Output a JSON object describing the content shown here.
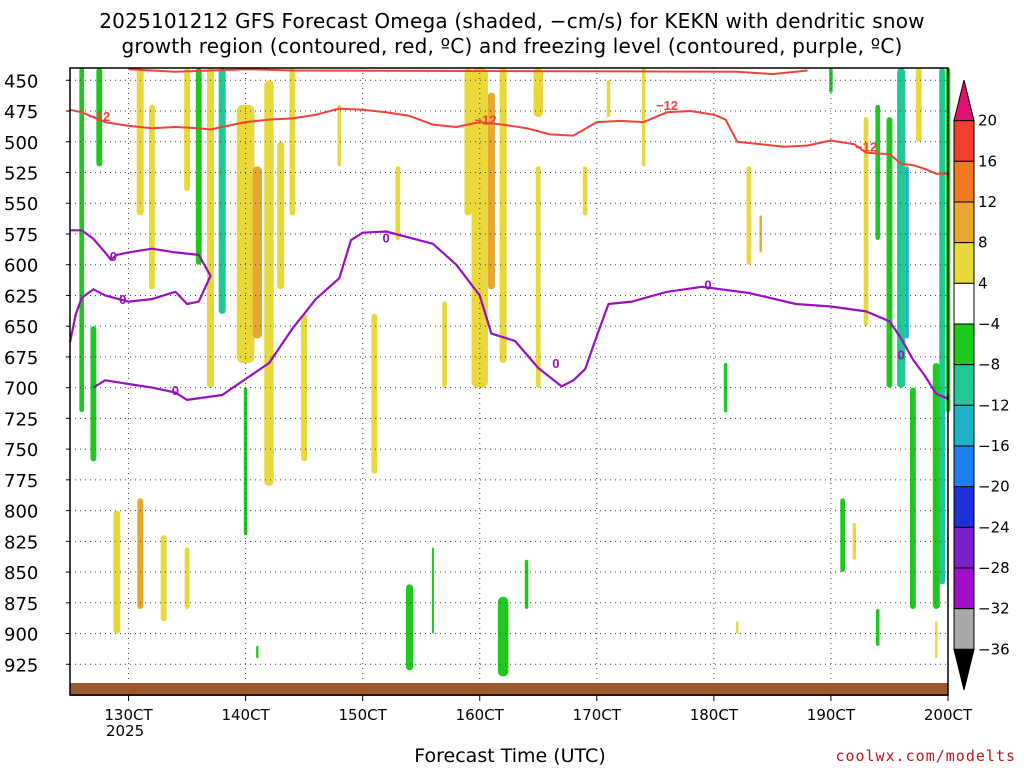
{
  "title_line1": "2025101212 GFS Forecast Omega (shaded, −cm/s) for KEKN with dendritic snow",
  "title_line2": "growth region (contoured, red, ºC) and freezing level (contoured, purple, ºC)",
  "credit": "coolwx.com/modelts",
  "chart_data": {
    "type": "heatmap",
    "title": "2025101212 GFS Forecast Omega (shaded, −cm/s) for KEKN with dendritic snow growth region (contoured, red, ºC) and freezing level (contoured, purple, ºC)",
    "xlabel": "Forecast Time (UTC)",
    "ylabel": "",
    "x_unit": "forecast day (October 2025, hour 00 = label)",
    "xlim": [
      12.5,
      20.0
    ],
    "ylim": [
      950,
      440
    ],
    "y_scale": "linear pressure (hPa), inverted",
    "grid": true,
    "x_ticks": [
      {
        "value": 13,
        "label": "130CT"
      },
      {
        "value": 14,
        "label": "140CT"
      },
      {
        "value": 15,
        "label": "150CT"
      },
      {
        "value": 16,
        "label": "160CT"
      },
      {
        "value": 17,
        "label": "170CT"
      },
      {
        "value": 18,
        "label": "180CT"
      },
      {
        "value": 19,
        "label": "190CT"
      },
      {
        "value": 20,
        "label": "200CT"
      }
    ],
    "x_sublabel": "2025",
    "y_ticks": [
      450,
      475,
      500,
      525,
      550,
      575,
      600,
      625,
      650,
      675,
      700,
      725,
      750,
      775,
      800,
      825,
      850,
      875,
      900,
      925
    ],
    "colorbar": {
      "labels": [
        "20",
        "16",
        "12",
        "8",
        "4",
        "−4",
        "−8",
        "−12",
        "−16",
        "−20",
        "−24",
        "−28",
        "−32",
        "−36"
      ],
      "colors": [
        "#e0106e",
        "#f0402e",
        "#f07a20",
        "#e6a830",
        "#e8d83a",
        "#ffffff",
        "#1fc81f",
        "#20c896",
        "#20b0c8",
        "#1e80ee",
        "#2030d8",
        "#7a20c8",
        "#a010c8",
        "#a8a8a8",
        "#000000"
      ]
    },
    "red_contour": {
      "label": "−12",
      "color": "#f0423a",
      "points": [
        [
          12.5,
          474
        ],
        [
          12.6,
          476
        ],
        [
          12.7,
          480
        ],
        [
          12.8,
          484
        ],
        [
          13.0,
          487
        ],
        [
          13.2,
          489
        ],
        [
          13.4,
          488
        ],
        [
          13.6,
          489
        ],
        [
          13.7,
          490
        ],
        [
          13.8,
          488
        ],
        [
          14.0,
          484
        ],
        [
          14.2,
          482
        ],
        [
          14.4,
          481
        ],
        [
          14.6,
          478
        ],
        [
          14.8,
          473
        ],
        [
          15.0,
          474
        ],
        [
          15.2,
          476
        ],
        [
          15.4,
          479
        ],
        [
          15.6,
          486
        ],
        [
          15.8,
          488
        ],
        [
          16.0,
          484
        ],
        [
          16.2,
          486
        ],
        [
          16.4,
          489
        ],
        [
          16.6,
          494
        ],
        [
          16.8,
          495
        ],
        [
          17.0,
          484
        ],
        [
          17.2,
          483
        ],
        [
          17.4,
          484
        ],
        [
          17.6,
          476
        ],
        [
          17.8,
          475
        ],
        [
          18.0,
          478
        ],
        [
          18.1,
          482
        ],
        [
          18.2,
          500
        ],
        [
          18.4,
          502
        ],
        [
          18.6,
          504
        ],
        [
          18.8,
          503
        ],
        [
          19.0,
          499
        ],
        [
          19.2,
          502
        ],
        [
          19.3,
          509
        ],
        [
          19.5,
          510
        ],
        [
          19.6,
          518
        ],
        [
          19.7,
          519
        ],
        [
          19.8,
          522
        ],
        [
          19.9,
          526
        ],
        [
          20.0,
          526
        ]
      ]
    },
    "red_contour_upper": {
      "label": "−12",
      "points": [
        [
          13.0,
          441
        ],
        [
          13.4,
          443
        ],
        [
          14.0,
          441
        ],
        [
          14.4,
          442
        ],
        [
          18.2,
          443
        ],
        [
          18.5,
          445
        ],
        [
          18.8,
          442
        ]
      ]
    },
    "purple_contour": {
      "label": "0",
      "color": "#9a10c0",
      "points": [
        [
          12.5,
          663
        ],
        [
          12.55,
          640
        ],
        [
          12.6,
          627
        ],
        [
          12.7,
          620
        ],
        [
          12.8,
          625
        ],
        [
          13.0,
          630
        ],
        [
          13.2,
          628
        ],
        [
          13.4,
          622
        ],
        [
          13.5,
          632
        ],
        [
          13.6,
          630
        ],
        [
          13.7,
          609
        ],
        [
          13.6,
          592
        ],
        [
          13.4,
          590
        ],
        [
          13.2,
          587
        ],
        [
          13.0,
          590
        ],
        [
          12.9,
          592
        ],
        [
          12.85,
          596
        ],
        [
          12.8,
          590
        ],
        [
          12.7,
          579
        ],
        [
          12.6,
          572
        ],
        [
          12.5,
          572
        ]
      ]
    },
    "purple_contour_lower": {
      "label": "0",
      "points": [
        [
          12.7,
          700
        ],
        [
          12.8,
          694
        ],
        [
          13.0,
          697
        ],
        [
          13.2,
          700
        ],
        [
          13.4,
          704
        ],
        [
          13.5,
          710
        ],
        [
          13.8,
          706
        ],
        [
          14.0,
          693
        ],
        [
          14.2,
          680
        ],
        [
          14.4,
          652
        ],
        [
          14.5,
          640
        ],
        [
          14.6,
          628
        ],
        [
          14.8,
          611
        ],
        [
          14.9,
          580
        ],
        [
          15.0,
          574
        ],
        [
          15.2,
          573
        ],
        [
          15.6,
          583
        ],
        [
          15.8,
          600
        ],
        [
          16.0,
          625
        ],
        [
          16.1,
          656
        ],
        [
          16.3,
          662
        ],
        [
          16.5,
          684
        ],
        [
          16.7,
          699
        ],
        [
          16.8,
          694
        ],
        [
          16.9,
          685
        ],
        [
          17.0,
          658
        ],
        [
          17.1,
          632
        ],
        [
          17.3,
          630
        ],
        [
          17.6,
          622
        ],
        [
          17.9,
          618
        ],
        [
          18.3,
          623
        ],
        [
          18.7,
          632
        ],
        [
          19.0,
          634
        ],
        [
          19.3,
          638
        ],
        [
          19.5,
          646
        ],
        [
          19.6,
          660
        ],
        [
          19.7,
          677
        ],
        [
          19.8,
          690
        ],
        [
          19.9,
          705
        ],
        [
          20.0,
          709
        ]
      ]
    }
  }
}
